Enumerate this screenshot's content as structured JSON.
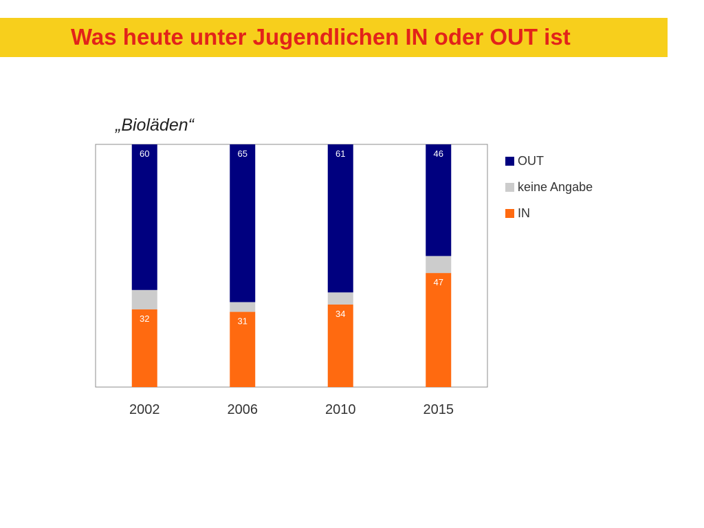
{
  "slide": {
    "title": "Was heute unter Jugendlichen IN oder OUT ist"
  },
  "chart_data": {
    "type": "bar",
    "stacked": true,
    "title": "„Bioläden“",
    "categories": [
      "2002",
      "2006",
      "2010",
      "2015"
    ],
    "series": [
      {
        "name": "IN",
        "color": "#ff6a10",
        "values": [
          32,
          31,
          34,
          47
        ]
      },
      {
        "name": "keine Angabe",
        "color": "#cccccc",
        "values": [
          8,
          4,
          5,
          7
        ]
      },
      {
        "name": "OUT",
        "color": "#00007f",
        "values": [
          60,
          65,
          61,
          46
        ]
      }
    ],
    "data_labels": {
      "IN": [
        "32",
        "31",
        "34",
        "47"
      ],
      "OUT": [
        "60",
        "65",
        "61",
        "46"
      ]
    },
    "ylim": [
      0,
      100
    ],
    "grid": false,
    "legend_position": "right",
    "legend_order": [
      "OUT",
      "keine Angabe",
      "IN"
    ]
  }
}
